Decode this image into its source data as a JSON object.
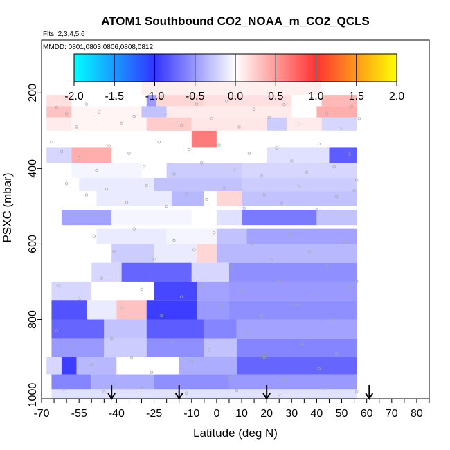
{
  "chart_data": {
    "type": "heatmap",
    "title": "ATOM1 Southbound CO2_NOAA_m_CO2_QCLS",
    "flights_note": "Flts: 2,3,4,5,6",
    "dates_note": "MMDD: 0801,0803,0806,0808,0812",
    "xlabel": "Latitude (deg N)",
    "ylabel": "PSXC (mbar)",
    "xlim": [
      -70,
      85
    ],
    "ylim": [
      1010,
      60
    ],
    "x_ticks": [
      -70,
      -55,
      -40,
      -25,
      -10,
      0,
      10,
      20,
      30,
      40,
      50,
      60,
      70,
      80
    ],
    "x_tick_labels": [
      "-70",
      "-55",
      "-40",
      "-25",
      "-10",
      "0",
      "10",
      "20",
      "30",
      "40",
      "50",
      "60",
      "70",
      "80"
    ],
    "y_ticks": [
      200,
      400,
      600,
      800,
      1000
    ],
    "y_tick_labels": [
      "200",
      "400",
      "600",
      "800",
      "1000"
    ],
    "colorbar": {
      "range": [
        -2.0,
        2.0
      ],
      "tick_values": [
        -2.0,
        -1.5,
        -1.0,
        -0.5,
        0.0,
        0.5,
        1.0,
        1.5,
        2.0
      ],
      "tick_labels": [
        "-2.0",
        "-1.5",
        "-1.0",
        "-0.5",
        "0.0",
        "0.5",
        "1.0",
        "1.5",
        "2.0"
      ],
      "colors": [
        "#00ffff",
        "#3333ff",
        "#ffffff",
        "#ff3333",
        "#ffff00"
      ]
    },
    "arrow_latitudes": [
      -42,
      -15,
      20,
      61
    ],
    "cells": [
      {
        "lat0": -30,
        "lat1": 42,
        "p0": 170,
        "p1": 205,
        "v": 0.08
      },
      {
        "lat0": -68,
        "lat1": -58,
        "p0": 205,
        "p1": 235,
        "v": 0.15
      },
      {
        "lat0": -42,
        "lat1": -28,
        "p0": 205,
        "p1": 235,
        "v": 0.0
      },
      {
        "lat0": -28,
        "lat1": -24,
        "p0": 205,
        "p1": 235,
        "v": -0.5
      },
      {
        "lat0": -24,
        "lat1": -5,
        "p0": 205,
        "p1": 235,
        "v": 0.2
      },
      {
        "lat0": -5,
        "lat1": 30,
        "p0": 205,
        "p1": 235,
        "v": 0.15
      },
      {
        "lat0": 42,
        "lat1": 56,
        "p0": 205,
        "p1": 235,
        "v": 0.35
      },
      {
        "lat0": -68,
        "lat1": -58,
        "p0": 235,
        "p1": 265,
        "v": 0.3
      },
      {
        "lat0": -58,
        "lat1": -30,
        "p0": 235,
        "p1": 265,
        "v": 0.05
      },
      {
        "lat0": -30,
        "lat1": -20,
        "p0": 235,
        "p1": 265,
        "v": -0.3
      },
      {
        "lat0": -20,
        "lat1": 30,
        "p0": 235,
        "p1": 265,
        "v": 0.1
      },
      {
        "lat0": 40,
        "lat1": 56,
        "p0": 235,
        "p1": 265,
        "v": 0.4
      },
      {
        "lat0": -68,
        "lat1": -58,
        "p0": 265,
        "p1": 300,
        "v": 0.1
      },
      {
        "lat0": -58,
        "lat1": -28,
        "p0": 265,
        "p1": 300,
        "v": 0.05
      },
      {
        "lat0": -28,
        "lat1": -10,
        "p0": 265,
        "p1": 300,
        "v": 0.25
      },
      {
        "lat0": -10,
        "lat1": 20,
        "p0": 265,
        "p1": 300,
        "v": 0.12
      },
      {
        "lat0": 20,
        "lat1": 28,
        "p0": 265,
        "p1": 300,
        "v": -0.25
      },
      {
        "lat0": 28,
        "lat1": 42,
        "p0": 265,
        "p1": 300,
        "v": 0.1
      },
      {
        "lat0": 42,
        "lat1": 56,
        "p0": 265,
        "p1": 300,
        "v": -0.2
      },
      {
        "lat0": -10,
        "lat1": 0,
        "p0": 300,
        "p1": 345,
        "v": 0.65
      },
      {
        "lat0": 0,
        "lat1": 48,
        "p0": 300,
        "p1": 345,
        "v": 0.0
      },
      {
        "lat0": -68,
        "lat1": -58,
        "p0": 345,
        "p1": 385,
        "v": -0.2
      },
      {
        "lat0": -58,
        "lat1": -42,
        "p0": 345,
        "p1": 385,
        "v": 0.4
      },
      {
        "lat0": -42,
        "lat1": -10,
        "p0": 345,
        "p1": 385,
        "v": 0.0
      },
      {
        "lat0": 20,
        "lat1": 45,
        "p0": 345,
        "p1": 385,
        "v": -0.15
      },
      {
        "lat0": 45,
        "lat1": 56,
        "p0": 345,
        "p1": 385,
        "v": -0.8
      },
      {
        "lat0": -58,
        "lat1": -30,
        "p0": 385,
        "p1": 425,
        "v": -0.05
      },
      {
        "lat0": -30,
        "lat1": -20,
        "p0": 385,
        "p1": 425,
        "v": 0.0
      },
      {
        "lat0": -20,
        "lat1": 10,
        "p0": 385,
        "p1": 425,
        "v": -0.25
      },
      {
        "lat0": 10,
        "lat1": 56,
        "p0": 385,
        "p1": 425,
        "v": -0.2
      },
      {
        "lat0": -55,
        "lat1": -25,
        "p0": 425,
        "p1": 460,
        "v": -0.1
      },
      {
        "lat0": -25,
        "lat1": 10,
        "p0": 425,
        "p1": 460,
        "v": -0.3
      },
      {
        "lat0": 10,
        "lat1": 56,
        "p0": 425,
        "p1": 460,
        "v": -0.25
      },
      {
        "lat0": -48,
        "lat1": -18,
        "p0": 460,
        "p1": 500,
        "v": -0.1
      },
      {
        "lat0": -18,
        "lat1": -5,
        "p0": 460,
        "p1": 500,
        "v": -0.35
      },
      {
        "lat0": 0,
        "lat1": 10,
        "p0": 460,
        "p1": 500,
        "v": 0.2
      },
      {
        "lat0": 10,
        "lat1": 56,
        "p0": 460,
        "p1": 500,
        "v": -0.3
      },
      {
        "lat0": -62,
        "lat1": -42,
        "p0": 510,
        "p1": 550,
        "v": -0.45
      },
      {
        "lat0": -42,
        "lat1": -10,
        "p0": 510,
        "p1": 550,
        "v": -0.05
      },
      {
        "lat0": 0,
        "lat1": 10,
        "p0": 510,
        "p1": 550,
        "v": -0.15
      },
      {
        "lat0": 10,
        "lat1": 40,
        "p0": 510,
        "p1": 550,
        "v": -0.65
      },
      {
        "lat0": 40,
        "lat1": 56,
        "p0": 510,
        "p1": 550,
        "v": -0.3
      },
      {
        "lat0": -48,
        "lat1": -20,
        "p0": 560,
        "p1": 600,
        "v": -0.1
      },
      {
        "lat0": -20,
        "lat1": 0,
        "p0": 560,
        "p1": 600,
        "v": -0.05
      },
      {
        "lat0": 0,
        "lat1": 12,
        "p0": 560,
        "p1": 600,
        "v": -0.3
      },
      {
        "lat0": 12,
        "lat1": 56,
        "p0": 560,
        "p1": 600,
        "v": -0.45
      },
      {
        "lat0": -42,
        "lat1": -25,
        "p0": 600,
        "p1": 650,
        "v": -0.25
      },
      {
        "lat0": -25,
        "lat1": -8,
        "p0": 600,
        "p1": 650,
        "v": -0.1
      },
      {
        "lat0": -8,
        "lat1": 0,
        "p0": 600,
        "p1": 650,
        "v": 0.2
      },
      {
        "lat0": 0,
        "lat1": 56,
        "p0": 600,
        "p1": 650,
        "v": -0.35
      },
      {
        "lat0": -50,
        "lat1": -38,
        "p0": 650,
        "p1": 700,
        "v": -0.2
      },
      {
        "lat0": -38,
        "lat1": -10,
        "p0": 650,
        "p1": 700,
        "v": -0.75
      },
      {
        "lat0": -10,
        "lat1": 5,
        "p0": 650,
        "p1": 700,
        "v": -0.2
      },
      {
        "lat0": 5,
        "lat1": 56,
        "p0": 650,
        "p1": 700,
        "v": -0.55
      },
      {
        "lat0": -66,
        "lat1": -50,
        "p0": 700,
        "p1": 750,
        "v": -0.2
      },
      {
        "lat0": -50,
        "lat1": -25,
        "p0": 700,
        "p1": 750,
        "v": 0.0
      },
      {
        "lat0": -25,
        "lat1": -8,
        "p0": 700,
        "p1": 750,
        "v": -0.9
      },
      {
        "lat0": -8,
        "lat1": 5,
        "p0": 700,
        "p1": 750,
        "v": -0.45
      },
      {
        "lat0": 5,
        "lat1": 56,
        "p0": 700,
        "p1": 750,
        "v": -0.5
      },
      {
        "lat0": -66,
        "lat1": -52,
        "p0": 750,
        "p1": 800,
        "v": -0.85
      },
      {
        "lat0": -52,
        "lat1": -40,
        "p0": 750,
        "p1": 800,
        "v": -0.1
      },
      {
        "lat0": -40,
        "lat1": -28,
        "p0": 750,
        "p1": 800,
        "v": 0.3
      },
      {
        "lat0": -28,
        "lat1": -8,
        "p0": 750,
        "p1": 800,
        "v": -0.95
      },
      {
        "lat0": -8,
        "lat1": 5,
        "p0": 750,
        "p1": 800,
        "v": -0.5
      },
      {
        "lat0": 5,
        "lat1": 56,
        "p0": 750,
        "p1": 800,
        "v": -0.55
      },
      {
        "lat0": -66,
        "lat1": -45,
        "p0": 800,
        "p1": 850,
        "v": -0.75
      },
      {
        "lat0": -45,
        "lat1": -28,
        "p0": 800,
        "p1": 850,
        "v": -0.3
      },
      {
        "lat0": -28,
        "lat1": -5,
        "p0": 800,
        "p1": 850,
        "v": -0.8
      },
      {
        "lat0": -5,
        "lat1": 8,
        "p0": 800,
        "p1": 850,
        "v": -0.6
      },
      {
        "lat0": 8,
        "lat1": 56,
        "p0": 800,
        "p1": 850,
        "v": -0.45
      },
      {
        "lat0": -66,
        "lat1": -45,
        "p0": 850,
        "p1": 900,
        "v": -0.5
      },
      {
        "lat0": -45,
        "lat1": -28,
        "p0": 850,
        "p1": 900,
        "v": -0.25
      },
      {
        "lat0": -28,
        "lat1": -5,
        "p0": 850,
        "p1": 900,
        "v": -0.55
      },
      {
        "lat0": -5,
        "lat1": 8,
        "p0": 850,
        "p1": 900,
        "v": -0.3
      },
      {
        "lat0": 8,
        "lat1": 56,
        "p0": 850,
        "p1": 900,
        "v": -0.6
      },
      {
        "lat0": -68,
        "lat1": -62,
        "p0": 900,
        "p1": 945,
        "v": -0.2
      },
      {
        "lat0": -62,
        "lat1": -56,
        "p0": 900,
        "p1": 945,
        "v": -0.95
      },
      {
        "lat0": -56,
        "lat1": -40,
        "p0": 900,
        "p1": 945,
        "v": -0.35
      },
      {
        "lat0": -40,
        "lat1": -15,
        "p0": 900,
        "p1": 945,
        "v": 0.0
      },
      {
        "lat0": -15,
        "lat1": 8,
        "p0": 900,
        "p1": 945,
        "v": -0.4
      },
      {
        "lat0": 8,
        "lat1": 56,
        "p0": 900,
        "p1": 945,
        "v": -0.75
      },
      {
        "lat0": -66,
        "lat1": -50,
        "p0": 945,
        "p1": 985,
        "v": -0.6
      },
      {
        "lat0": -50,
        "lat1": -25,
        "p0": 945,
        "p1": 985,
        "v": -0.4
      },
      {
        "lat0": -25,
        "lat1": 5,
        "p0": 945,
        "p1": 985,
        "v": -0.55
      },
      {
        "lat0": 5,
        "lat1": 56,
        "p0": 945,
        "p1": 985,
        "v": -0.5
      },
      {
        "lat0": -66,
        "lat1": 56,
        "p0": 985,
        "p1": 1010,
        "v": -0.15
      }
    ],
    "samples": [
      [
        -64,
        238
      ],
      [
        -60,
        255
      ],
      [
        -56,
        290
      ],
      [
        -52,
        230
      ],
      [
        -47,
        250
      ],
      [
        -41,
        215
      ],
      [
        -38,
        280
      ],
      [
        -33,
        262
      ],
      [
        -26,
        224
      ],
      [
        -20,
        258
      ],
      [
        -14,
        286
      ],
      [
        -8,
        230
      ],
      [
        -2,
        268
      ],
      [
        4,
        222
      ],
      [
        9,
        290
      ],
      [
        15,
        243
      ],
      [
        21,
        265
      ],
      [
        27,
        231
      ],
      [
        33,
        282
      ],
      [
        38,
        214
      ],
      [
        44,
        255
      ],
      [
        50,
        293
      ],
      [
        54,
        236
      ],
      [
        57,
        268
      ],
      [
        -66,
        330
      ],
      [
        -62,
        355
      ],
      [
        -55,
        372
      ],
      [
        -48,
        405
      ],
      [
        -43,
        340
      ],
      [
        -35,
        360
      ],
      [
        -29,
        395
      ],
      [
        -23,
        330
      ],
      [
        -17,
        415
      ],
      [
        -11,
        350
      ],
      [
        -6,
        385
      ],
      [
        1,
        338
      ],
      [
        7,
        402
      ],
      [
        13,
        360
      ],
      [
        18,
        420
      ],
      [
        24,
        345
      ],
      [
        30,
        380
      ],
      [
        36,
        410
      ],
      [
        41,
        335
      ],
      [
        47,
        395
      ],
      [
        53,
        362
      ],
      [
        56,
        430
      ],
      [
        -60,
        440
      ],
      [
        -52,
        470
      ],
      [
        -44,
        455
      ],
      [
        -36,
        490
      ],
      [
        -28,
        445
      ],
      [
        -20,
        500
      ],
      [
        -12,
        468
      ],
      [
        -4,
        482
      ],
      [
        3,
        452
      ],
      [
        11,
        505
      ],
      [
        19,
        470
      ],
      [
        26,
        492
      ],
      [
        33,
        448
      ],
      [
        40,
        510
      ],
      [
        48,
        475
      ],
      [
        55,
        458
      ],
      [
        -57,
        545
      ],
      [
        -49,
        580
      ],
      [
        -41,
        620
      ],
      [
        -33,
        560
      ],
      [
        -25,
        640
      ],
      [
        -17,
        590
      ],
      [
        -9,
        615
      ],
      [
        -1,
        570
      ],
      [
        6,
        660
      ],
      [
        14,
        600
      ],
      [
        22,
        640
      ],
      [
        29,
        575
      ],
      [
        37,
        620
      ],
      [
        44,
        660
      ],
      [
        51,
        595
      ],
      [
        56,
        700
      ],
      [
        -63,
        710
      ],
      [
        -55,
        745
      ],
      [
        -46,
        690
      ],
      [
        -38,
        770
      ],
      [
        -30,
        720
      ],
      [
        -22,
        790
      ],
      [
        -14,
        740
      ],
      [
        -6,
        705
      ],
      [
        2,
        765
      ],
      [
        10,
        725
      ],
      [
        18,
        790
      ],
      [
        25,
        700
      ],
      [
        32,
        760
      ],
      [
        39,
        735
      ],
      [
        46,
        800
      ],
      [
        53,
        715
      ],
      [
        -64,
        830
      ],
      [
        -58,
        870
      ],
      [
        -50,
        920
      ],
      [
        -42,
        850
      ],
      [
        -34,
        900
      ],
      [
        -26,
        940
      ],
      [
        -18,
        860
      ],
      [
        -10,
        910
      ],
      [
        -3,
        880
      ],
      [
        5,
        955
      ],
      [
        12,
        835
      ],
      [
        19,
        900
      ],
      [
        27,
        960
      ],
      [
        34,
        865
      ],
      [
        41,
        930
      ],
      [
        48,
        890
      ],
      [
        55,
        975
      ],
      [
        -61,
        985
      ],
      [
        -45,
        992
      ],
      [
        -30,
        980
      ],
      [
        -12,
        995
      ],
      [
        8,
        988
      ],
      [
        25,
        998
      ],
      [
        43,
        984
      ],
      [
        56,
        992
      ]
    ]
  }
}
